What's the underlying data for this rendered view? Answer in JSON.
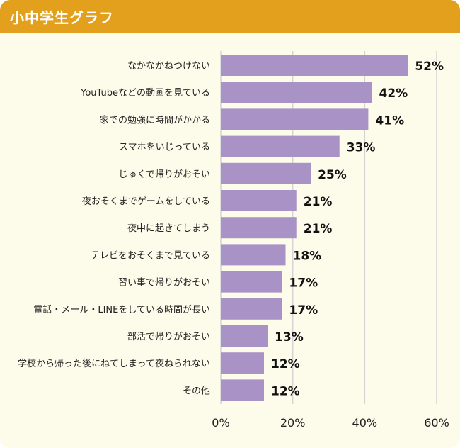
{
  "header": {
    "title": "小中学生グラフ"
  },
  "colors": {
    "header": "#e3a01c",
    "background": "#fdfbea",
    "bar": "#a993c6",
    "grid": "#d4d4d4"
  },
  "chart_data": {
    "type": "bar",
    "orientation": "horizontal",
    "categories": [
      "なかなかねつけない",
      "YouTubeなどの動画を見ている",
      "家での勉強に時間がかかる",
      "スマホをいじっている",
      "じゅくで帰りがおそい",
      "夜おそくまでゲームをしている",
      "夜中に起きてしまう",
      "テレビをおそくまで見ている",
      "習い事で帰りがおそい",
      "電話・メール・LINEをしている時間が長い",
      "部活で帰りがおそい",
      "学校から帰った後にねてしまって夜ねられない",
      "その他"
    ],
    "values": [
      52,
      42,
      41,
      33,
      25,
      21,
      21,
      18,
      17,
      17,
      13,
      12,
      12
    ],
    "value_labels": [
      "52%",
      "42%",
      "41%",
      "33%",
      "25%",
      "21%",
      "21%",
      "18%",
      "17%",
      "17%",
      "13%",
      "12%",
      "12%"
    ],
    "xlim": [
      0,
      60
    ],
    "xticks": [
      0,
      20,
      40,
      60
    ],
    "xtick_labels": [
      "0%",
      "20%",
      "40%",
      "60%"
    ],
    "grid": true,
    "legend": "none"
  }
}
